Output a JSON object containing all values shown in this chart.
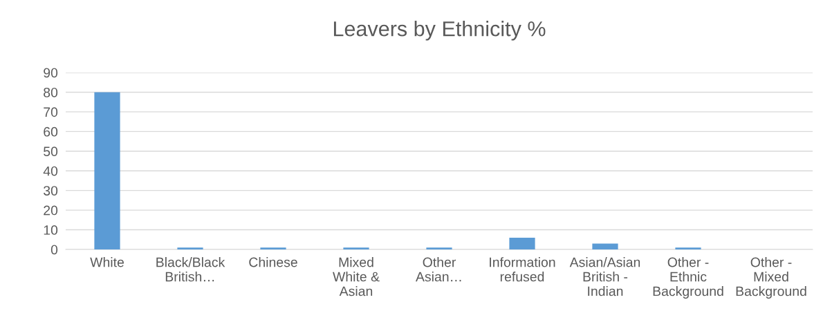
{
  "chart_data": {
    "type": "bar",
    "title": "Leavers by Ethnicity %",
    "categories": [
      "White",
      "Black/Black\nBritish…",
      "Chinese",
      "Mixed\nWhite &\nAsian",
      "Other\nAsian…",
      "Information\nrefused",
      "Asian/Asian\nBritish -\nIndian",
      "Other -\nEthnic\nBackground",
      "Other -\nMixed\nBackground"
    ],
    "values": [
      80,
      1,
      1,
      1,
      1,
      6,
      3,
      1,
      0
    ],
    "color": "#5b9bd5",
    "ylim": [
      0,
      90
    ],
    "yticks": [
      0,
      10,
      20,
      30,
      40,
      50,
      60,
      70,
      80,
      90
    ],
    "grid": "y",
    "legend": false
  }
}
